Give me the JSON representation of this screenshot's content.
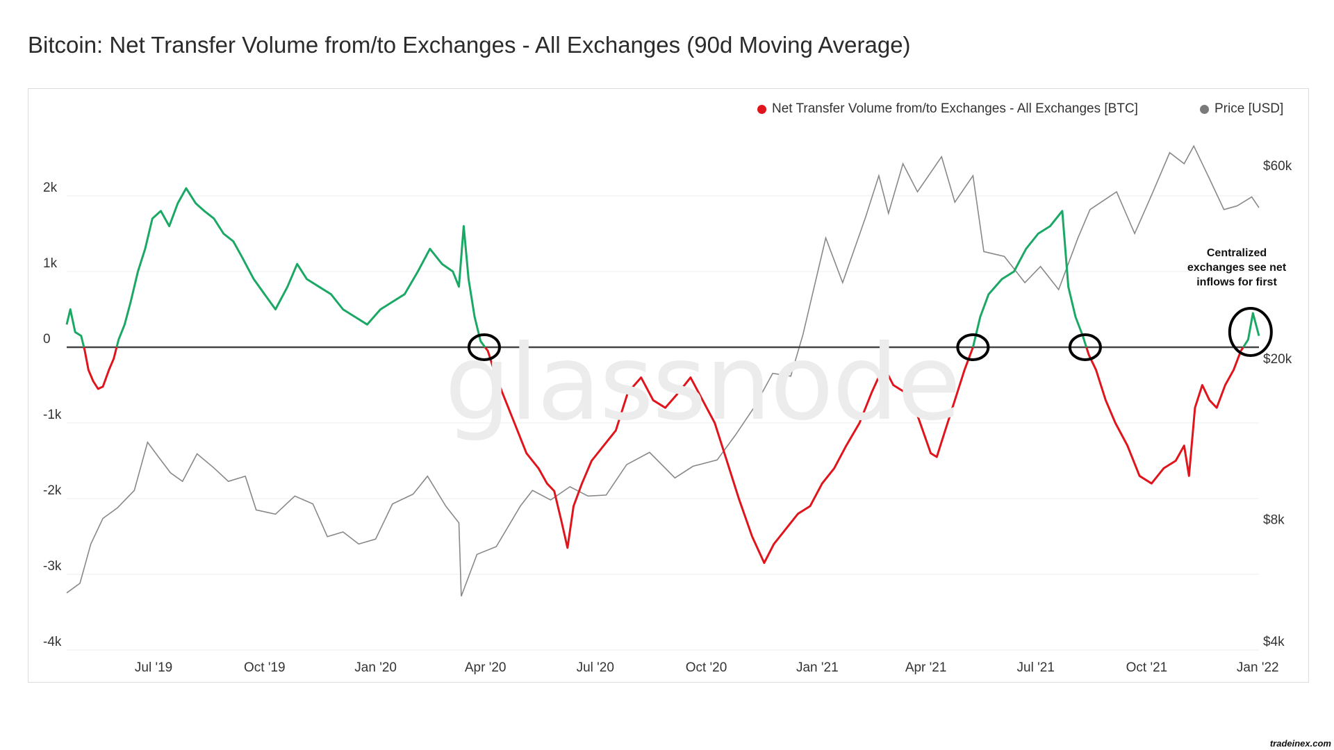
{
  "title": "Bitcoin: Net Transfer Volume from/to Exchanges - All Exchanges (90d Moving Average)",
  "watermark": "glassnode",
  "annotation": "Centralized exchanges see net inflows for first",
  "credit": "tradeinex.com",
  "chart_data": {
    "type": "line",
    "legend_position": "top-right",
    "grid": true,
    "x_ticks": [
      {
        "date": "2019-07-01",
        "label": "Jul '19"
      },
      {
        "date": "2019-10-01",
        "label": "Oct '19"
      },
      {
        "date": "2020-01-01",
        "label": "Jan '20"
      },
      {
        "date": "2020-04-01",
        "label": "Apr '20"
      },
      {
        "date": "2020-07-01",
        "label": "Jul '20"
      },
      {
        "date": "2020-10-01",
        "label": "Oct '20"
      },
      {
        "date": "2021-01-01",
        "label": "Jan '21"
      },
      {
        "date": "2021-04-01",
        "label": "Apr '21"
      },
      {
        "date": "2021-07-01",
        "label": "Jul '21"
      },
      {
        "date": "2021-10-01",
        "label": "Oct '21"
      },
      {
        "date": "2022-01-01",
        "label": "Jan '22"
      }
    ],
    "x_range": [
      "2019-04-20",
      "2022-01-02"
    ],
    "y_left": {
      "ticks": [
        2000,
        1000,
        0,
        -1000,
        -2000,
        -3000,
        -4000
      ],
      "labels": [
        "2k",
        "1k",
        "0",
        "-1k",
        "-2k",
        "-3k",
        "-4k"
      ],
      "range": [
        -4000,
        2000
      ]
    },
    "y_right": {
      "scale": "log",
      "ticks": [
        60000,
        20000,
        8000,
        4000
      ],
      "labels": [
        "$60k",
        "$20k",
        "$8k",
        "$4k"
      ]
    },
    "positive_color": "#1aa864",
    "negative_color": "#e0141b",
    "series": [
      {
        "name": "Net Transfer Volume from/to Exchanges - All Exchanges [BTC]",
        "legend_color": "#e0141b",
        "axis": "left",
        "points": [
          [
            "2019-04-20",
            300
          ],
          [
            "2019-04-23",
            500
          ],
          [
            "2019-04-27",
            200
          ],
          [
            "2019-05-02",
            150
          ],
          [
            "2019-05-05",
            -50
          ],
          [
            "2019-05-08",
            -300
          ],
          [
            "2019-05-12",
            -450
          ],
          [
            "2019-05-16",
            -550
          ],
          [
            "2019-05-20",
            -520
          ],
          [
            "2019-05-25",
            -300
          ],
          [
            "2019-05-29",
            -150
          ],
          [
            "2019-06-02",
            100
          ],
          [
            "2019-06-07",
            300
          ],
          [
            "2019-06-12",
            600
          ],
          [
            "2019-06-18",
            1000
          ],
          [
            "2019-06-24",
            1300
          ],
          [
            "2019-06-30",
            1700
          ],
          [
            "2019-07-07",
            1800
          ],
          [
            "2019-07-14",
            1600
          ],
          [
            "2019-07-21",
            1900
          ],
          [
            "2019-07-28",
            2100
          ],
          [
            "2019-08-05",
            1900
          ],
          [
            "2019-08-12",
            1800
          ],
          [
            "2019-08-20",
            1700
          ],
          [
            "2019-08-28",
            1500
          ],
          [
            "2019-09-05",
            1400
          ],
          [
            "2019-09-12",
            1200
          ],
          [
            "2019-09-22",
            900
          ],
          [
            "2019-10-01",
            700
          ],
          [
            "2019-10-10",
            500
          ],
          [
            "2019-10-20",
            800
          ],
          [
            "2019-10-28",
            1100
          ],
          [
            "2019-11-05",
            900
          ],
          [
            "2019-11-15",
            800
          ],
          [
            "2019-11-25",
            700
          ],
          [
            "2019-12-05",
            500
          ],
          [
            "2019-12-15",
            400
          ],
          [
            "2019-12-25",
            300
          ],
          [
            "2020-01-05",
            500
          ],
          [
            "2020-01-15",
            600
          ],
          [
            "2020-01-25",
            700
          ],
          [
            "2020-02-05",
            1000
          ],
          [
            "2020-02-15",
            1300
          ],
          [
            "2020-02-25",
            1100
          ],
          [
            "2020-03-05",
            1000
          ],
          [
            "2020-03-10",
            800
          ],
          [
            "2020-03-14",
            1600
          ],
          [
            "2020-03-18",
            900
          ],
          [
            "2020-03-23",
            400
          ],
          [
            "2020-03-28",
            80
          ],
          [
            "2020-04-03",
            -50
          ],
          [
            "2020-04-08",
            -300
          ],
          [
            "2020-04-15",
            -600
          ],
          [
            "2020-04-25",
            -1000
          ],
          [
            "2020-05-05",
            -1400
          ],
          [
            "2020-05-15",
            -1600
          ],
          [
            "2020-05-22",
            -1800
          ],
          [
            "2020-05-28",
            -1900
          ],
          [
            "2020-06-03",
            -2300
          ],
          [
            "2020-06-08",
            -2650
          ],
          [
            "2020-06-13",
            -2100
          ],
          [
            "2020-06-20",
            -1800
          ],
          [
            "2020-06-28",
            -1500
          ],
          [
            "2020-07-08",
            -1300
          ],
          [
            "2020-07-18",
            -1100
          ],
          [
            "2020-07-28",
            -600
          ],
          [
            "2020-08-08",
            -400
          ],
          [
            "2020-08-18",
            -700
          ],
          [
            "2020-08-28",
            -800
          ],
          [
            "2020-09-08",
            -600
          ],
          [
            "2020-09-18",
            -400
          ],
          [
            "2020-09-28",
            -700
          ],
          [
            "2020-10-08",
            -1000
          ],
          [
            "2020-10-18",
            -1500
          ],
          [
            "2020-10-28",
            -2000
          ],
          [
            "2020-11-08",
            -2500
          ],
          [
            "2020-11-18",
            -2850
          ],
          [
            "2020-11-26",
            -2600
          ],
          [
            "2020-12-06",
            -2400
          ],
          [
            "2020-12-16",
            -2200
          ],
          [
            "2020-12-26",
            -2100
          ],
          [
            "2021-01-05",
            -1800
          ],
          [
            "2021-01-15",
            -1600
          ],
          [
            "2021-01-25",
            -1300
          ],
          [
            "2021-02-05",
            -1000
          ],
          [
            "2021-02-15",
            -600
          ],
          [
            "2021-02-25",
            -250
          ],
          [
            "2021-03-05",
            -500
          ],
          [
            "2021-03-15",
            -600
          ],
          [
            "2021-03-25",
            -900
          ],
          [
            "2021-04-05",
            -1400
          ],
          [
            "2021-04-10",
            -1450
          ],
          [
            "2021-04-15",
            -1200
          ],
          [
            "2021-04-25",
            -700
          ],
          [
            "2021-05-03",
            -300
          ],
          [
            "2021-05-10",
            0
          ],
          [
            "2021-05-16",
            400
          ],
          [
            "2021-05-23",
            700
          ],
          [
            "2021-06-03",
            900
          ],
          [
            "2021-06-13",
            1000
          ],
          [
            "2021-06-23",
            1300
          ],
          [
            "2021-07-03",
            1500
          ],
          [
            "2021-07-13",
            1600
          ],
          [
            "2021-07-23",
            1800
          ],
          [
            "2021-07-28",
            800
          ],
          [
            "2021-08-03",
            400
          ],
          [
            "2021-08-09",
            150
          ],
          [
            "2021-08-14",
            -100
          ],
          [
            "2021-08-20",
            -300
          ],
          [
            "2021-08-28",
            -700
          ],
          [
            "2021-09-05",
            -1000
          ],
          [
            "2021-09-15",
            -1300
          ],
          [
            "2021-09-25",
            -1700
          ],
          [
            "2021-10-05",
            -1800
          ],
          [
            "2021-10-15",
            -1600
          ],
          [
            "2021-10-25",
            -1500
          ],
          [
            "2021-11-01",
            -1300
          ],
          [
            "2021-11-05",
            -1700
          ],
          [
            "2021-11-10",
            -800
          ],
          [
            "2021-11-16",
            -500
          ],
          [
            "2021-11-22",
            -700
          ],
          [
            "2021-11-28",
            -800
          ],
          [
            "2021-12-05",
            -500
          ],
          [
            "2021-12-12",
            -300
          ],
          [
            "2021-12-18",
            -50
          ],
          [
            "2021-12-24",
            100
          ],
          [
            "2021-12-28",
            450
          ],
          [
            "2022-01-02",
            150
          ]
        ]
      },
      {
        "name": "Price [USD]",
        "legend_color": "#7a7a7a",
        "axis": "right",
        "color": "#888888",
        "points": [
          [
            "2019-04-20",
            5300
          ],
          [
            "2019-05-01",
            5600
          ],
          [
            "2019-05-10",
            7000
          ],
          [
            "2019-05-20",
            8100
          ],
          [
            "2019-06-01",
            8600
          ],
          [
            "2019-06-15",
            9500
          ],
          [
            "2019-06-26",
            12500
          ],
          [
            "2019-07-05",
            11500
          ],
          [
            "2019-07-15",
            10500
          ],
          [
            "2019-07-25",
            10000
          ],
          [
            "2019-08-06",
            11700
          ],
          [
            "2019-08-20",
            10800
          ],
          [
            "2019-09-01",
            10000
          ],
          [
            "2019-09-15",
            10300
          ],
          [
            "2019-09-24",
            8500
          ],
          [
            "2019-10-10",
            8300
          ],
          [
            "2019-10-26",
            9200
          ],
          [
            "2019-11-10",
            8800
          ],
          [
            "2019-11-22",
            7300
          ],
          [
            "2019-12-05",
            7500
          ],
          [
            "2019-12-18",
            7000
          ],
          [
            "2020-01-01",
            7200
          ],
          [
            "2020-01-15",
            8800
          ],
          [
            "2020-02-01",
            9300
          ],
          [
            "2020-02-13",
            10300
          ],
          [
            "2020-02-28",
            8700
          ],
          [
            "2020-03-10",
            7900
          ],
          [
            "2020-03-12",
            5200
          ],
          [
            "2020-03-25",
            6600
          ],
          [
            "2020-04-10",
            6900
          ],
          [
            "2020-04-30",
            8700
          ],
          [
            "2020-05-10",
            9500
          ],
          [
            "2020-05-25",
            9000
          ],
          [
            "2020-06-10",
            9700
          ],
          [
            "2020-06-25",
            9200
          ],
          [
            "2020-07-10",
            9250
          ],
          [
            "2020-07-27",
            11000
          ],
          [
            "2020-08-15",
            11800
          ],
          [
            "2020-09-05",
            10200
          ],
          [
            "2020-09-20",
            10900
          ],
          [
            "2020-10-10",
            11300
          ],
          [
            "2020-10-25",
            13000
          ],
          [
            "2020-11-10",
            15300
          ],
          [
            "2020-11-25",
            18500
          ],
          [
            "2020-12-10",
            18200
          ],
          [
            "2020-12-20",
            23000
          ],
          [
            "2021-01-08",
            40000
          ],
          [
            "2021-01-22",
            31000
          ],
          [
            "2021-02-10",
            45000
          ],
          [
            "2021-02-21",
            57000
          ],
          [
            "2021-03-01",
            46000
          ],
          [
            "2021-03-13",
            61000
          ],
          [
            "2021-03-25",
            52000
          ],
          [
            "2021-04-14",
            63500
          ],
          [
            "2021-04-25",
            49000
          ],
          [
            "2021-05-10",
            57000
          ],
          [
            "2021-05-19",
            37000
          ],
          [
            "2021-06-05",
            36000
          ],
          [
            "2021-06-22",
            31000
          ],
          [
            "2021-07-05",
            34000
          ],
          [
            "2021-07-20",
            29800
          ],
          [
            "2021-08-05",
            40000
          ],
          [
            "2021-08-15",
            47000
          ],
          [
            "2021-09-06",
            52000
          ],
          [
            "2021-09-21",
            41000
          ],
          [
            "2021-10-05",
            51000
          ],
          [
            "2021-10-20",
            65000
          ],
          [
            "2021-11-01",
            61000
          ],
          [
            "2021-11-09",
            67500
          ],
          [
            "2021-11-22",
            56000
          ],
          [
            "2021-12-04",
            47000
          ],
          [
            "2021-12-15",
            48000
          ],
          [
            "2021-12-27",
            50500
          ],
          [
            "2022-01-02",
            47500
          ]
        ]
      }
    ],
    "crossings": [
      "2020-03-31",
      "2021-05-10",
      "2021-08-11",
      "2021-12-26"
    ]
  }
}
